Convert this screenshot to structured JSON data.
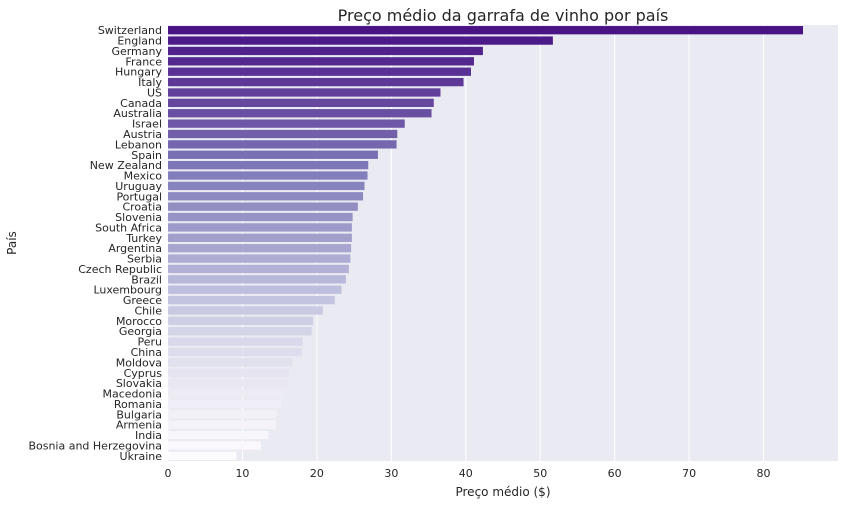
{
  "chart_data": {
    "type": "bar",
    "orientation": "horizontal",
    "title": "Preço médio da garrafa de vinho por país",
    "xlabel": "Preço médio ($)",
    "ylabel": "País",
    "xlim": [
      0,
      90
    ],
    "xticks": [
      0,
      10,
      20,
      30,
      40,
      50,
      60,
      70,
      80
    ],
    "grid": true,
    "palette": "purples-descending",
    "categories": [
      "Switzerland",
      "England",
      "Germany",
      "France",
      "Hungary",
      "Italy",
      "US",
      "Canada",
      "Australia",
      "Israel",
      "Austria",
      "Lebanon",
      "Spain",
      "New Zealand",
      "Mexico",
      "Uruguay",
      "Portugal",
      "Croatia",
      "Slovenia",
      "South Africa",
      "Turkey",
      "Argentina",
      "Serbia",
      "Czech Republic",
      "Brazil",
      "Luxembourg",
      "Greece",
      "Chile",
      "Morocco",
      "Georgia",
      "Peru",
      "China",
      "Moldova",
      "Cyprus",
      "Slovakia",
      "Macedonia",
      "Romania",
      "Bulgaria",
      "Armenia",
      "India",
      "Bosnia and Herzegovina",
      "Ukraine"
    ],
    "values": [
      85.3,
      51.7,
      42.3,
      41.1,
      40.7,
      39.7,
      36.6,
      35.7,
      35.4,
      31.8,
      30.8,
      30.7,
      28.2,
      26.9,
      26.8,
      26.4,
      26.2,
      25.5,
      24.8,
      24.7,
      24.7,
      24.6,
      24.5,
      24.3,
      23.9,
      23.3,
      22.4,
      20.8,
      19.5,
      19.3,
      18.1,
      18.0,
      16.7,
      16.3,
      16.1,
      15.6,
      15.2,
      14.6,
      14.5,
      13.5,
      12.5,
      9.2
    ]
  }
}
